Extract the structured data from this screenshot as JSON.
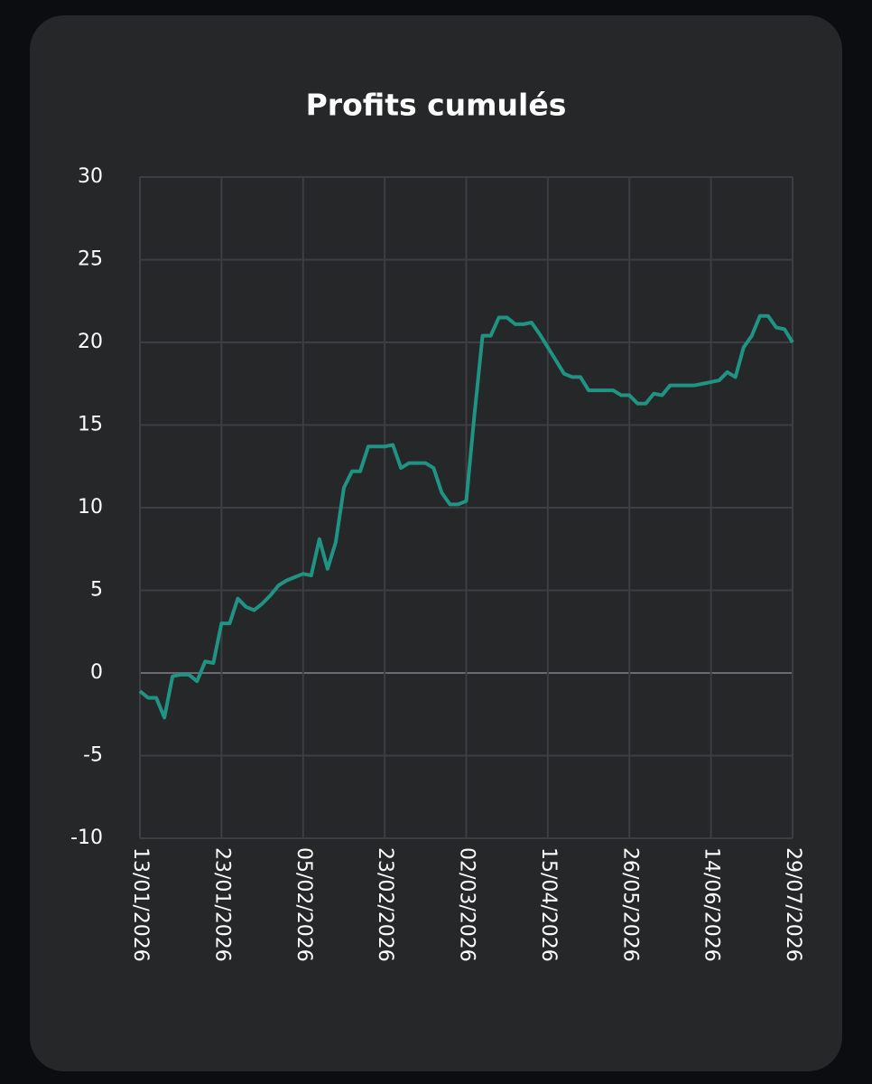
{
  "chart_data": {
    "type": "line",
    "title": "Profits cumulés",
    "categories": [
      "13/01/2026",
      null,
      null,
      null,
      null,
      null,
      null,
      null,
      null,
      null,
      "23/01/2026",
      null,
      null,
      null,
      null,
      null,
      null,
      null,
      null,
      null,
      "05/02/2026",
      null,
      null,
      null,
      null,
      null,
      null,
      null,
      null,
      null,
      "23/02/2026",
      null,
      null,
      null,
      null,
      null,
      null,
      null,
      null,
      null,
      "02/03/2026",
      null,
      null,
      null,
      null,
      null,
      null,
      null,
      null,
      null,
      "15/04/2026",
      null,
      null,
      null,
      null,
      null,
      null,
      null,
      null,
      null,
      "26/05/2026",
      null,
      null,
      null,
      null,
      null,
      null,
      null,
      null,
      null,
      "14/06/2026",
      null,
      null,
      null,
      null,
      null,
      null,
      null,
      null,
      null,
      "29/07/2026"
    ],
    "series": [
      {
        "color": "#1f9484",
        "values": [
          -1.1,
          -1.5,
          -1.5,
          -2.7,
          -0.2,
          -0.1,
          -0.1,
          -0.5,
          0.7,
          0.6,
          3.0,
          3.0,
          4.5,
          4.0,
          3.8,
          4.2,
          4.7,
          5.3,
          5.6,
          5.8,
          6.0,
          5.9,
          8.1,
          6.3,
          7.9,
          11.2,
          12.2,
          12.2,
          13.7,
          13.7,
          13.7,
          13.8,
          12.4,
          12.7,
          12.7,
          12.7,
          12.4,
          10.9,
          10.2,
          10.2,
          10.4,
          15.6,
          20.4,
          20.4,
          21.5,
          21.5,
          21.1,
          21.1,
          21.2,
          20.5,
          19.7,
          18.9,
          18.1,
          17.9,
          17.9,
          17.1,
          17.1,
          17.1,
          17.1,
          16.8,
          16.8,
          16.3,
          16.3,
          16.9,
          16.8,
          17.4,
          17.4,
          17.4,
          17.4,
          17.5,
          17.6,
          17.7,
          18.2,
          17.9,
          19.7,
          20.4,
          21.6,
          21.6,
          20.9,
          20.8,
          20.0
        ]
      }
    ],
    "ylim": [
      -10,
      30
    ],
    "yticks": [
      -10,
      -5,
      0,
      5,
      10,
      15,
      20,
      25,
      30
    ],
    "grid": true
  }
}
